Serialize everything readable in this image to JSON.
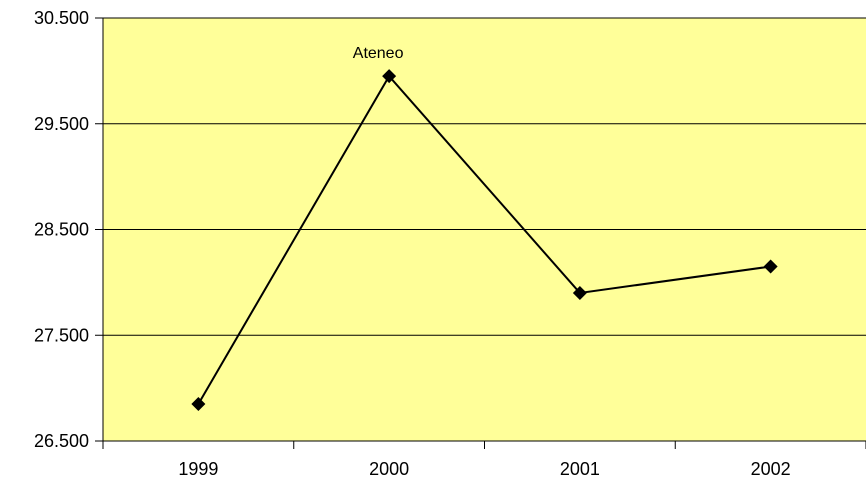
{
  "chart_data": {
    "type": "line",
    "categories": [
      "1999",
      "2000",
      "2001",
      "2002"
    ],
    "series": [
      {
        "values": [
          26.85,
          29.95,
          27.9,
          28.15
        ],
        "marker": "diamond",
        "color": "#000000"
      }
    ],
    "yticks": [
      "26.500",
      "27.500",
      "28.500",
      "29.500",
      "30.500"
    ],
    "ylim": [
      26.5,
      30.5
    ],
    "annotations": [
      {
        "text": "Ateneo",
        "category": "2000"
      }
    ],
    "grid": true,
    "plot_background": "#FFFF99",
    "legend": "none"
  }
}
